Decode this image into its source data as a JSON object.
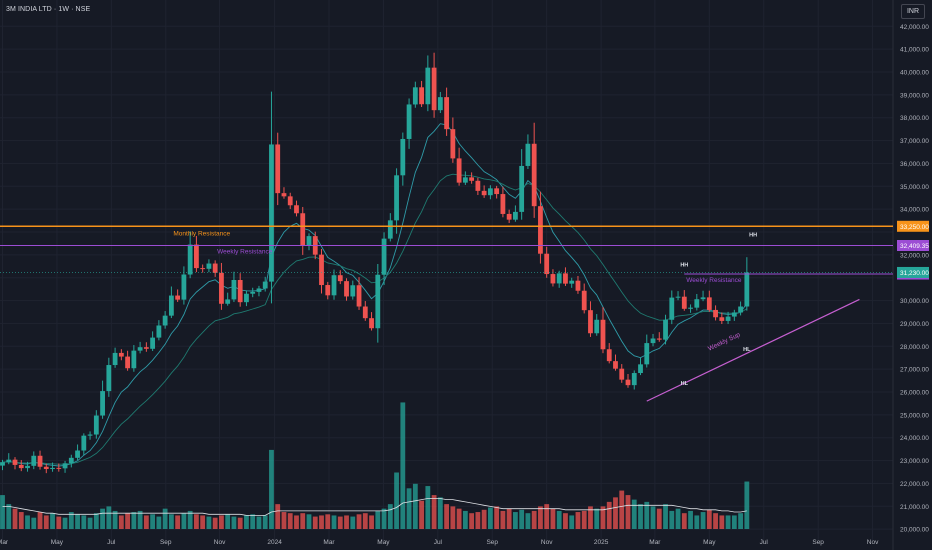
{
  "header": {
    "symbol_title": "3M INDIA LTD · 1W · NSE",
    "currency_label": "INR"
  },
  "colors": {
    "background": "#161a25",
    "grid": "#1f2330",
    "axis_text": "#b2b5be",
    "up": "#26a69a",
    "down": "#ef5350",
    "ma_fast": "#2f9ba8",
    "ma_slow": "#1f7a70",
    "volume_ma": "#dfe1e6",
    "monthly_resistance": "#f7931a",
    "weekly_resistance": "#9c4dd4",
    "weekly_support": "#c55fd0",
    "current_price": "#26a69a"
  },
  "chart_data": {
    "type": "candlestick",
    "title": "3M INDIA LTD · 1W · NSE",
    "currency": "INR",
    "ylim": [
      19700,
      42800
    ],
    "y_ticks": [
      20000,
      21000,
      22000,
      23000,
      24000,
      25000,
      26000,
      27000,
      28000,
      29000,
      30000,
      31000,
      32000,
      33000,
      34000,
      35000,
      36000,
      37000,
      38000,
      39000,
      40000,
      41000,
      42000
    ],
    "y_tick_labels": [
      "20,000.00",
      "21,000.00",
      "22,000.00",
      "23,000.00",
      "24,000.00",
      "25,000.00",
      "26,000.00",
      "27,000.00",
      "28,000.00",
      "29,000.00",
      "30,000.00",
      "31,000.00",
      "32,000.00",
      "33,000.00",
      "34,000.00",
      "35,000.00",
      "36,000.00",
      "37,000.00",
      "38,000.00",
      "39,000.00",
      "40,000.00",
      "41,000.00",
      "42,000.00"
    ],
    "x_ticks": [
      {
        "label": "Mar",
        "week": 0
      },
      {
        "label": "May",
        "week": 8.7
      },
      {
        "label": "Jul",
        "week": 17.4
      },
      {
        "label": "Sep",
        "week": 26.1
      },
      {
        "label": "Nov",
        "week": 34.7
      },
      {
        "label": "2024",
        "week": 43.5
      },
      {
        "label": "Mar",
        "week": 52.2
      },
      {
        "label": "May",
        "week": 60.9
      },
      {
        "label": "Jul",
        "week": 69.6
      },
      {
        "label": "Sep",
        "week": 78.3
      },
      {
        "label": "Nov",
        "week": 87.0
      },
      {
        "label": "2025",
        "week": 95.7
      },
      {
        "label": "Mar",
        "week": 104.3
      },
      {
        "label": "May",
        "week": 113.0
      },
      {
        "label": "Jul",
        "week": 121.7
      },
      {
        "label": "Sep",
        "week": 130.4
      },
      {
        "label": "Nov",
        "week": 139.1
      }
    ],
    "closes": [
      22930,
      23040,
      22810,
      22670,
      22770,
      23210,
      22730,
      22630,
      22680,
      22660,
      22880,
      23120,
      23440,
      24090,
      24140,
      24970,
      26040,
      27180,
      27710,
      27550,
      27040,
      27810,
      27960,
      27890,
      28380,
      28910,
      29340,
      30220,
      30040,
      31140,
      32450,
      31420,
      31390,
      31620,
      31210,
      29860,
      30050,
      30900,
      29930,
      30300,
      30380,
      30530,
      30830,
      36830,
      34700,
      34560,
      34170,
      33820,
      32390,
      32820,
      32010,
      30680,
      30230,
      31110,
      30850,
      30180,
      30670,
      29740,
      29230,
      28790,
      31130,
      32710,
      33510,
      35480,
      37070,
      38580,
      39330,
      38590,
      40190,
      38330,
      38900,
      37500,
      36220,
      35160,
      35390,
      35240,
      34800,
      34610,
      34910,
      34660,
      33790,
      33540,
      33880,
      35890,
      36860,
      34130,
      32050,
      31160,
      30750,
      31190,
      30740,
      30870,
      30430,
      29580,
      28570,
      29160,
      27870,
      27350,
      27020,
      26540,
      26300,
      26830,
      27210,
      28140,
      28340,
      28290,
      29160,
      30130,
      30170,
      29640,
      29690,
      30060,
      30140,
      29590,
      29270,
      29110,
      29300,
      29480,
      29740,
      31230
    ],
    "volumes": [
      30,
      22,
      18,
      15,
      12,
      10,
      15,
      12,
      14,
      11,
      10,
      15,
      13,
      12,
      10,
      14,
      18,
      20,
      16,
      12,
      14,
      15,
      16,
      12,
      13,
      11,
      18,
      13,
      12,
      14,
      16,
      13,
      12,
      11,
      10,
      12,
      13,
      11,
      10,
      12,
      13,
      11,
      12,
      70,
      22,
      15,
      14,
      12,
      14,
      13,
      11,
      12,
      13,
      12,
      11,
      12,
      11,
      13,
      14,
      12,
      16,
      18,
      22,
      50,
      112,
      36,
      40,
      25,
      38,
      30,
      28,
      22,
      20,
      18,
      16,
      14,
      15,
      17,
      19,
      20,
      16,
      18,
      15,
      17,
      14,
      16,
      20,
      22,
      18,
      16,
      14,
      12,
      15,
      16,
      20,
      18,
      20,
      24,
      28,
      34,
      30,
      26,
      22,
      24,
      20,
      18,
      22,
      16,
      18,
      14,
      16,
      12,
      15,
      17,
      14,
      12,
      12,
      12,
      14,
      42
    ],
    "volume_ma": [
      20,
      20,
      19,
      18,
      17,
      16,
      15,
      14,
      14,
      13,
      13,
      13,
      13,
      13,
      13,
      13,
      14,
      14,
      14,
      14,
      14,
      14,
      14,
      14,
      14,
      14,
      14,
      14,
      14,
      14,
      14,
      14,
      14,
      13,
      13,
      13,
      13,
      13,
      13,
      12,
      12,
      12,
      12,
      15,
      16,
      16,
      16,
      16,
      16,
      16,
      16,
      16,
      16,
      16,
      16,
      16,
      16,
      16,
      16,
      16,
      16,
      16,
      17,
      19,
      23,
      24,
      25,
      26,
      27,
      27,
      27,
      26,
      26,
      25,
      24,
      23,
      22,
      21,
      20,
      19,
      18,
      18,
      18,
      18,
      18,
      18,
      18,
      18,
      18,
      18,
      17,
      17,
      17,
      17,
      17,
      17,
      17,
      18,
      19,
      20,
      21,
      21,
      21,
      21,
      21,
      21,
      21,
      21,
      20,
      19,
      18,
      18,
      17,
      17,
      17,
      16,
      16,
      15,
      15,
      16
    ],
    "ma_fast": [],
    "ma_slow": [],
    "price_lines": [
      {
        "name": "Monthly Resistance",
        "price": 33250,
        "label": "33,250.00",
        "from_week": 27
      },
      {
        "name": "Weekly Resistance",
        "price": 32409.35,
        "label": "32,409.35",
        "from_week": 34
      },
      {
        "name": "Weekly Resistance",
        "price": 31160,
        "label": "31,160.00",
        "from_week": 109
      }
    ],
    "current_price": {
      "price": 31230,
      "label": "31,230.00"
    },
    "trendline": {
      "label": "Weekly Sup",
      "from": {
        "week": 103,
        "price": 25600
      },
      "to": {
        "week": 137,
        "price": 30050
      }
    },
    "annotations": [
      {
        "text": "HH",
        "week": 109,
        "price": 31500
      },
      {
        "text": "HH",
        "week": 120,
        "price": 32800
      },
      {
        "text": "HL",
        "week": 109,
        "price": 26300
      },
      {
        "text": "HL",
        "week": 119,
        "price": 27800
      }
    ]
  }
}
